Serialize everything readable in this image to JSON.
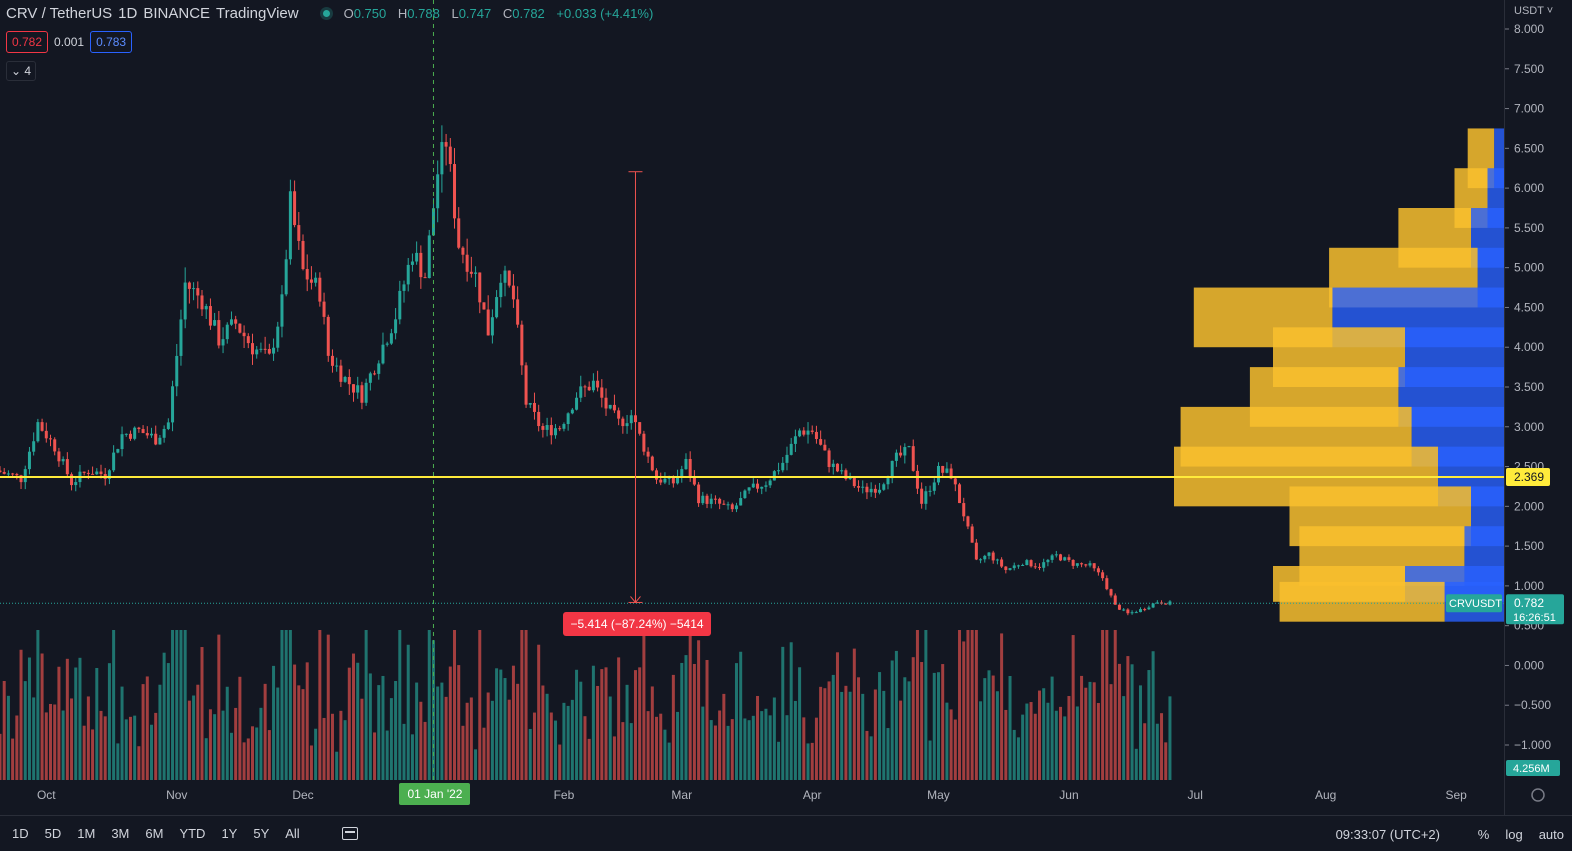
{
  "header": {
    "symbol": "CRV / TetherUS",
    "interval": "1D",
    "exchange": "BINANCE",
    "platform": "TradingView",
    "ohlc": {
      "o_label": "O",
      "o": "0.750",
      "h_label": "H",
      "h": "0.788",
      "l_label": "L",
      "l": "0.747",
      "c_label": "C",
      "c": "0.782",
      "change": "+0.033 (+4.41%)"
    },
    "sell_price": "0.782",
    "spread": "0.001",
    "buy_price": "0.783",
    "collapse_label": "4"
  },
  "price_axis": {
    "currency": "USDT",
    "ticks": [
      "8.000",
      "7.500",
      "7.000",
      "6.500",
      "6.000",
      "5.500",
      "5.000",
      "4.500",
      "4.000",
      "3.500",
      "3.000",
      "2.500",
      "2.000",
      "1.500",
      "1.000",
      "0.500",
      "0.000",
      "−0.500",
      "−1.000"
    ],
    "hline_label": "2.369",
    "symbol_tag": "CRVUSDT",
    "last_price": "0.782",
    "countdown": "16:26:51",
    "volume_label": "4.256M"
  },
  "time_axis": {
    "labels": [
      "Oct",
      "Nov",
      "Dec",
      "01 Jan '22",
      "Feb",
      "Mar",
      "Apr",
      "May",
      "Jun",
      "Jul",
      "Aug",
      "Sep"
    ]
  },
  "measure": {
    "label": "−5.414 (−87.24%) −5414"
  },
  "bottom_bar": {
    "ranges": [
      "1D",
      "5D",
      "1M",
      "3M",
      "6M",
      "YTD",
      "1Y",
      "5Y",
      "All"
    ],
    "clock": "09:33:07 (UTC+2)",
    "percent": "%",
    "log": "log",
    "auto": "auto"
  },
  "colors": {
    "up": "#26a69a",
    "down": "#ef5350",
    "hline": "#ffeb3b",
    "vp_up": "#f9c02e",
    "vp_down": "#2962ff"
  },
  "chart_data": {
    "type": "candlestick",
    "title": "CRV / TetherUS 1D BINANCE",
    "xlabel": "",
    "ylabel": "",
    "ylim": [
      -1.0,
      8.0
    ],
    "x_range": [
      "2021-09-20",
      "2022-09-10"
    ],
    "close_path": [
      {
        "x": "2021-09-20",
        "y": 2.45
      },
      {
        "x": "2021-09-26",
        "y": 2.35
      },
      {
        "x": "2021-09-30",
        "y": 3.05
      },
      {
        "x": "2021-10-04",
        "y": 2.75
      },
      {
        "x": "2021-10-08",
        "y": 2.3
      },
      {
        "x": "2021-10-12",
        "y": 2.45
      },
      {
        "x": "2021-10-16",
        "y": 2.4
      },
      {
        "x": "2021-10-20",
        "y": 2.9
      },
      {
        "x": "2021-10-24",
        "y": 2.95
      },
      {
        "x": "2021-10-28",
        "y": 2.85
      },
      {
        "x": "2021-10-31",
        "y": 3.05
      },
      {
        "x": "2021-11-02",
        "y": 3.9
      },
      {
        "x": "2021-11-04",
        "y": 4.8
      },
      {
        "x": "2021-11-08",
        "y": 4.6
      },
      {
        "x": "2021-11-12",
        "y": 4.1
      },
      {
        "x": "2021-11-16",
        "y": 4.3
      },
      {
        "x": "2021-11-20",
        "y": 4.0
      },
      {
        "x": "2021-11-24",
        "y": 3.85
      },
      {
        "x": "2021-11-27",
        "y": 4.55
      },
      {
        "x": "2021-11-29",
        "y": 5.8
      },
      {
        "x": "2021-12-02",
        "y": 4.95
      },
      {
        "x": "2021-12-06",
        "y": 4.7
      },
      {
        "x": "2021-12-08",
        "y": 3.9
      },
      {
        "x": "2021-12-12",
        "y": 3.6
      },
      {
        "x": "2021-12-16",
        "y": 3.4
      },
      {
        "x": "2021-12-20",
        "y": 3.9
      },
      {
        "x": "2021-12-24",
        "y": 4.4
      },
      {
        "x": "2021-12-28",
        "y": 5.2
      },
      {
        "x": "2021-12-31",
        "y": 4.9
      },
      {
        "x": "2022-01-03",
        "y": 6.2
      },
      {
        "x": "2022-01-05",
        "y": 6.6
      },
      {
        "x": "2022-01-08",
        "y": 5.3
      },
      {
        "x": "2022-01-12",
        "y": 4.9
      },
      {
        "x": "2022-01-15",
        "y": 4.2
      },
      {
        "x": "2022-01-18",
        "y": 4.95
      },
      {
        "x": "2022-01-21",
        "y": 4.6
      },
      {
        "x": "2022-01-24",
        "y": 3.3
      },
      {
        "x": "2022-01-28",
        "y": 2.95
      },
      {
        "x": "2022-02-01",
        "y": 3.0
      },
      {
        "x": "2022-02-05",
        "y": 3.4
      },
      {
        "x": "2022-02-09",
        "y": 3.55
      },
      {
        "x": "2022-02-12",
        "y": 3.25
      },
      {
        "x": "2022-02-15",
        "y": 3.05
      },
      {
        "x": "2022-02-18",
        "y": 3.15
      },
      {
        "x": "2022-02-21",
        "y": 2.75
      },
      {
        "x": "2022-02-24",
        "y": 2.35
      },
      {
        "x": "2022-02-28",
        "y": 2.3
      },
      {
        "x": "2022-03-03",
        "y": 2.55
      },
      {
        "x": "2022-03-06",
        "y": 2.1
      },
      {
        "x": "2022-03-10",
        "y": 2.05
      },
      {
        "x": "2022-03-14",
        "y": 1.95
      },
      {
        "x": "2022-03-18",
        "y": 2.2
      },
      {
        "x": "2022-03-22",
        "y": 2.3
      },
      {
        "x": "2022-03-26",
        "y": 2.55
      },
      {
        "x": "2022-03-30",
        "y": 2.95
      },
      {
        "x": "2022-04-02",
        "y": 2.95
      },
      {
        "x": "2022-04-06",
        "y": 2.55
      },
      {
        "x": "2022-04-10",
        "y": 2.35
      },
      {
        "x": "2022-04-14",
        "y": 2.2
      },
      {
        "x": "2022-04-18",
        "y": 2.25
      },
      {
        "x": "2022-04-22",
        "y": 2.6
      },
      {
        "x": "2022-04-25",
        "y": 2.7
      },
      {
        "x": "2022-04-28",
        "y": 2.05
      },
      {
        "x": "2022-05-02",
        "y": 2.45
      },
      {
        "x": "2022-05-05",
        "y": 2.4
      },
      {
        "x": "2022-05-08",
        "y": 1.9
      },
      {
        "x": "2022-05-11",
        "y": 1.3
      },
      {
        "x": "2022-05-14",
        "y": 1.4
      },
      {
        "x": "2022-05-18",
        "y": 1.2
      },
      {
        "x": "2022-05-22",
        "y": 1.3
      },
      {
        "x": "2022-05-26",
        "y": 1.25
      },
      {
        "x": "2022-05-30",
        "y": 1.38
      },
      {
        "x": "2022-06-03",
        "y": 1.28
      },
      {
        "x": "2022-06-07",
        "y": 1.25
      },
      {
        "x": "2022-06-10",
        "y": 1.1
      },
      {
        "x": "2022-06-13",
        "y": 0.75
      },
      {
        "x": "2022-06-16",
        "y": 0.65
      },
      {
        "x": "2022-06-19",
        "y": 0.7
      },
      {
        "x": "2022-06-23",
        "y": 0.8
      },
      {
        "x": "2022-06-26",
        "y": 0.782
      }
    ],
    "last": {
      "open": 0.75,
      "high": 0.788,
      "low": 0.747,
      "close": 0.782
    },
    "horizontal_line": 2.369,
    "vertical_line_date": "2022-01-01",
    "measure": {
      "from_date": "2022-02-18",
      "from_price": 6.206,
      "to_price": 0.792,
      "change": -5.414,
      "change_pct": -87.24
    },
    "volume_profile": [
      {
        "price": 6.5,
        "up": 0.08,
        "down": 0.03
      },
      {
        "price": 6.0,
        "up": 0.1,
        "down": 0.05
      },
      {
        "price": 5.5,
        "up": 0.22,
        "down": 0.1
      },
      {
        "price": 5.0,
        "up": 0.45,
        "down": 0.08
      },
      {
        "price": 4.5,
        "up": 0.42,
        "down": 0.52
      },
      {
        "price": 4.0,
        "up": 0.4,
        "down": 0.3
      },
      {
        "price": 3.5,
        "up": 0.45,
        "down": 0.32
      },
      {
        "price": 3.0,
        "up": 0.7,
        "down": 0.28
      },
      {
        "price": 2.5,
        "up": 0.8,
        "down": 0.2
      },
      {
        "price": 2.0,
        "up": 0.55,
        "down": 0.1
      },
      {
        "price": 1.5,
        "up": 0.5,
        "down": 0.12
      },
      {
        "price": 1.0,
        "up": 0.4,
        "down": 0.3
      },
      {
        "price": 0.8,
        "up": 0.5,
        "down": 0.18
      }
    ]
  }
}
